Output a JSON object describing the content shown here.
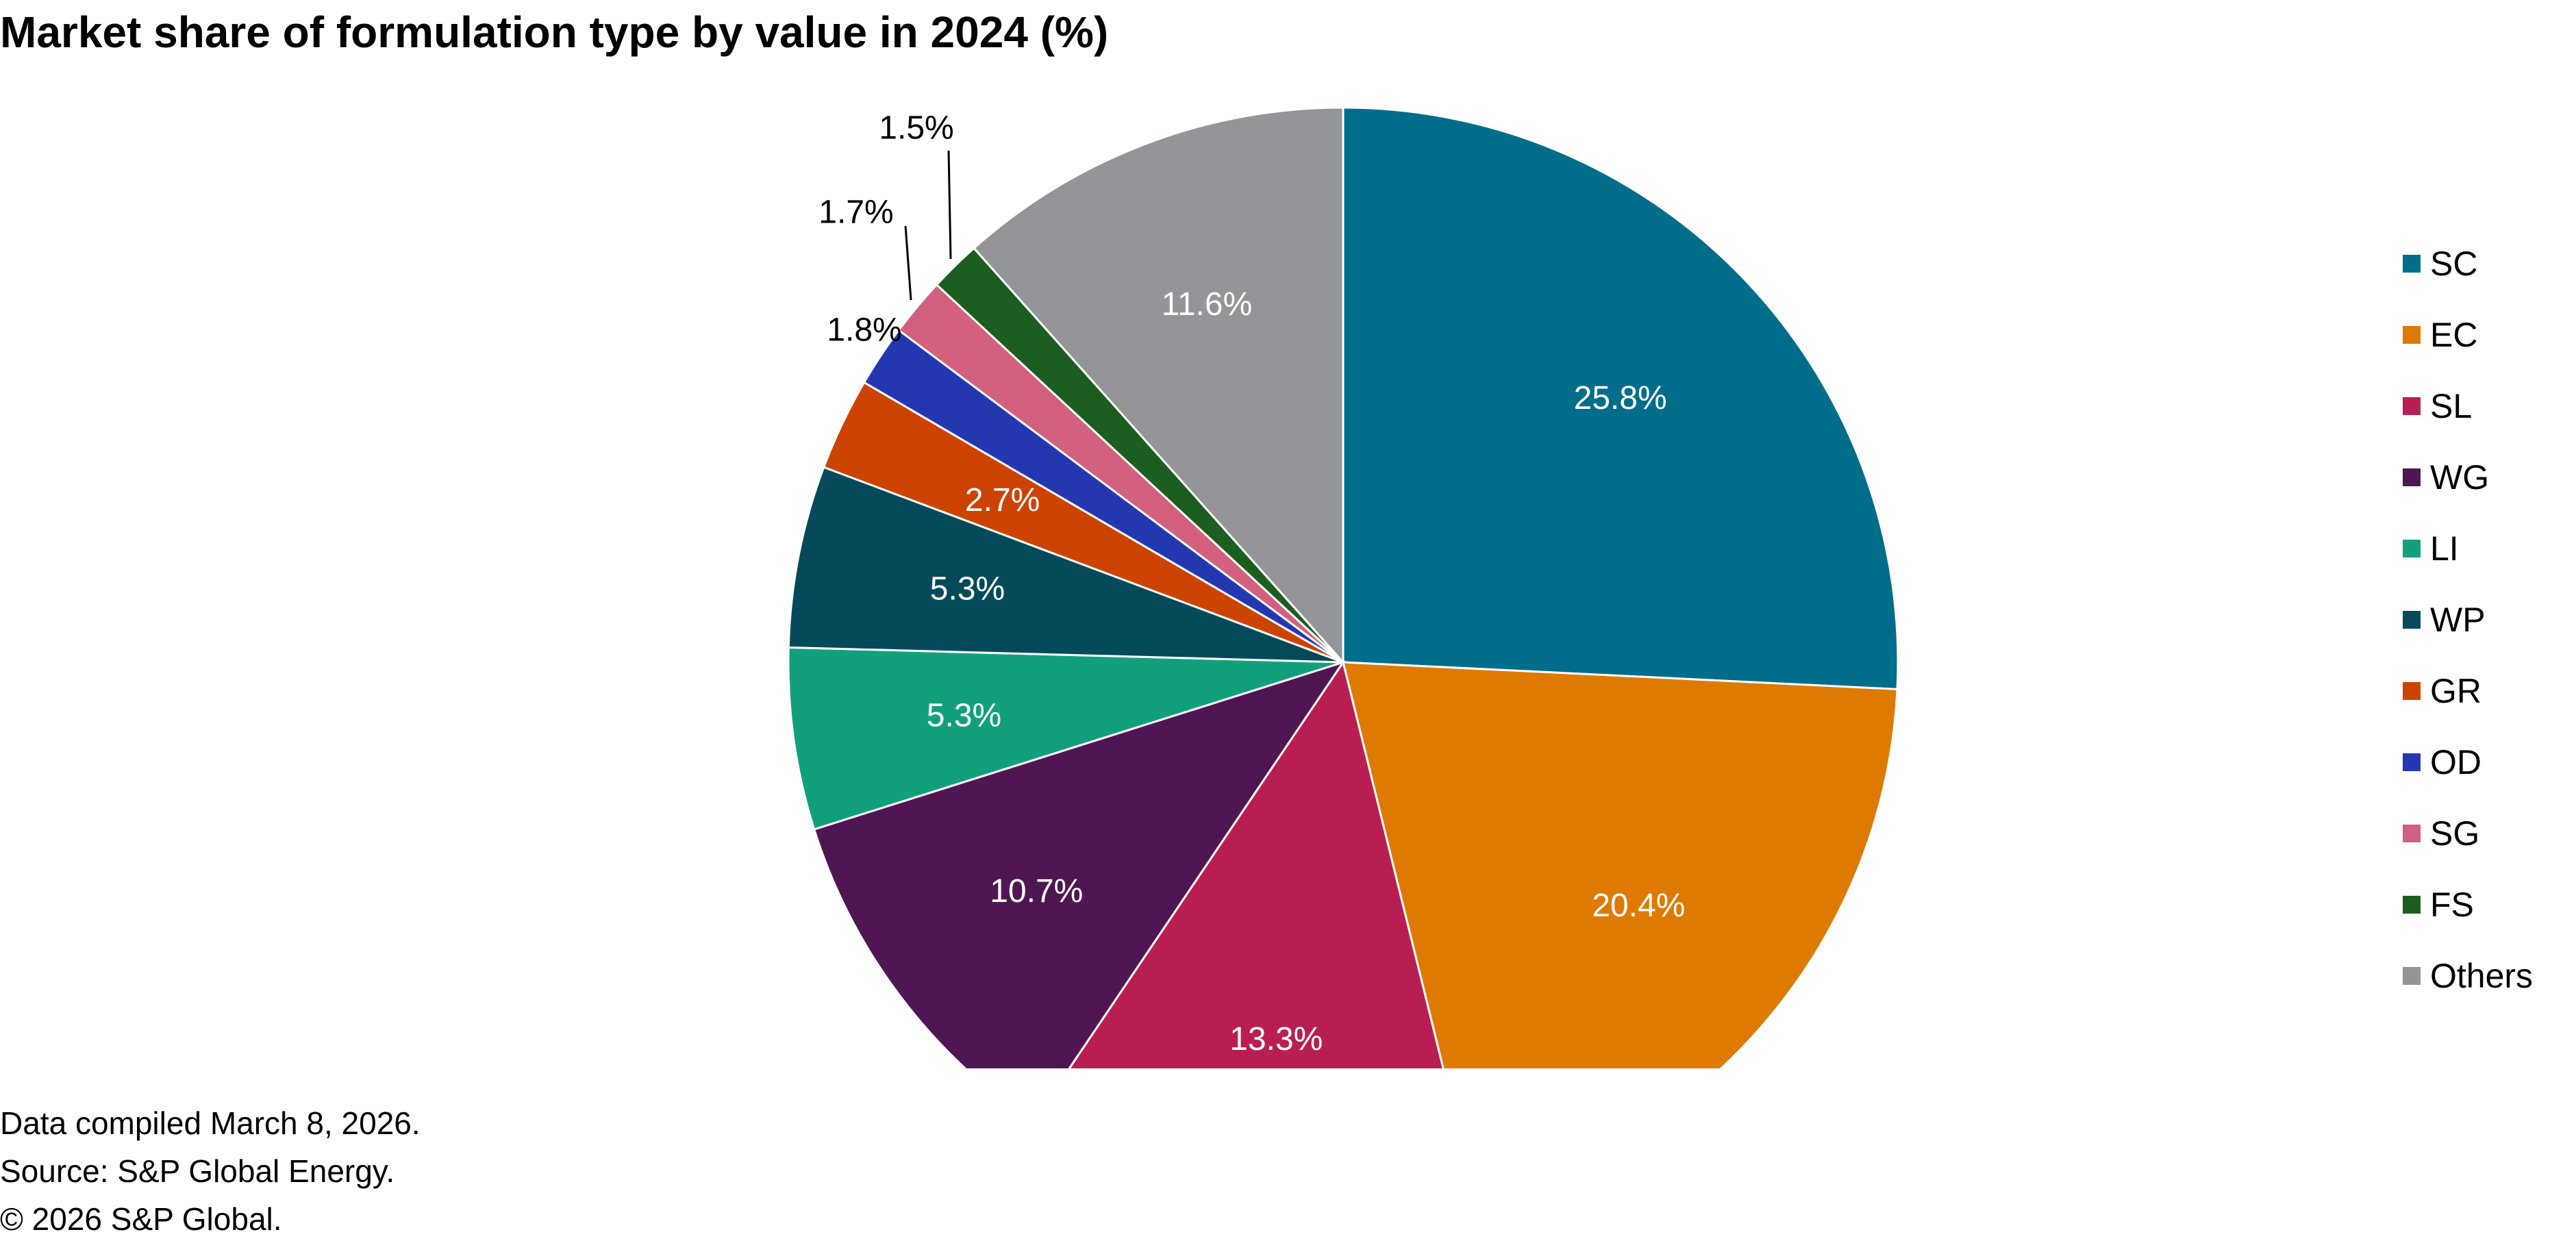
{
  "chart_data": {
    "type": "pie",
    "title": "Market share of formulation type by value in 2024 (%)",
    "start_angle_deg": 0,
    "direction": "clockwise",
    "legend_position": "right",
    "slices": [
      {
        "name": "SC",
        "value": 25.8,
        "label": "25.8%",
        "color": "#006D8A"
      },
      {
        "name": "EC",
        "value": 20.4,
        "label": "20.4%",
        "color": "#DE7A00"
      },
      {
        "name": "SL",
        "value": 13.3,
        "label": "13.3%",
        "color": "#B91E53"
      },
      {
        "name": "WG",
        "value": 10.7,
        "label": "10.7%",
        "color": "#501653"
      },
      {
        "name": "LI",
        "value": 5.3,
        "label": "5.3%",
        "color": "#12A07C"
      },
      {
        "name": "WP",
        "value": 5.3,
        "label": "5.3%",
        "color": "#044A5A"
      },
      {
        "name": "GR",
        "value": 2.7,
        "label": "2.7%",
        "color": "#CC4300"
      },
      {
        "name": "OD",
        "value": 1.8,
        "label": "1.8%",
        "color": "#2338B0"
      },
      {
        "name": "SG",
        "value": 1.7,
        "label": "1.7%",
        "color": "#D2607E"
      },
      {
        "name": "FS",
        "value": 1.5,
        "label": "1.5%",
        "color": "#1B5E20"
      },
      {
        "name": "Others",
        "value": 11.6,
        "label": "11.6%",
        "color": "#939598"
      }
    ]
  },
  "footnotes": {
    "compiled": "Data compiled March 8, 2026.",
    "source": "Source: S&P Global Energy.",
    "copyright": "© 2026 S&P Global."
  }
}
